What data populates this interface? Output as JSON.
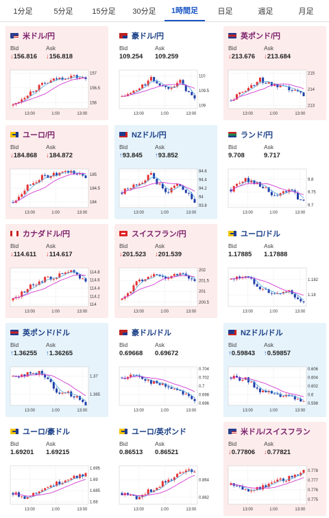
{
  "tabs": [
    {
      "label": "1分足",
      "active": false
    },
    {
      "label": "5分足",
      "active": false
    },
    {
      "label": "15分足",
      "active": false
    },
    {
      "label": "30分足",
      "active": false
    },
    {
      "label": "1時間足",
      "active": true
    },
    {
      "label": "日足",
      "active": false
    },
    {
      "label": "週足",
      "active": false
    },
    {
      "label": "月足",
      "active": false
    }
  ],
  "labels": {
    "bid": "Bid",
    "ask": "Ask"
  },
  "colors": {
    "down_bg": "#fdecec",
    "up_bg": "#e6f3fb",
    "bull": "#e53333",
    "bear": "#1f3fa8",
    "ma_short": "#4aa3df",
    "ma_long": "#d23ad2"
  },
  "cards": [
    {
      "pair": "米ドル/円",
      "flag": "us-flag-icon",
      "dir": "down",
      "bid": "156.816",
      "ask": "156.818",
      "chart_data": {
        "type": "candlestick",
        "x_ticks": [
          "13:00",
          "1:00",
          "13:00"
        ],
        "y_ticks": [
          "157",
          "156.5",
          "156"
        ],
        "ylim": [
          155.8,
          157.1
        ],
        "trend": [
          155.9,
          156.3,
          156.6,
          156.8,
          156.9,
          156.8
        ]
      }
    },
    {
      "pair": "豪ドル/円",
      "flag": "au-flag-icon",
      "dir": "flat",
      "bid": "109.254",
      "ask": "109.259",
      "chart_data": {
        "type": "candlestick",
        "x_ticks": [
          "13:00",
          "1:00",
          "13:00"
        ],
        "y_ticks": [
          "110",
          "109.5",
          "109"
        ],
        "ylim": [
          108.9,
          110.2
        ],
        "trend": [
          109.3,
          109.5,
          109.9,
          109.6,
          109.8,
          109.2
        ]
      }
    },
    {
      "pair": "英ポンド/円",
      "flag": "gb-flag-icon",
      "dir": "down",
      "bid": "213.676",
      "ask": "213.684",
      "chart_data": {
        "type": "candlestick",
        "x_ticks": [
          "13:00",
          "1:00",
          "13:00"
        ],
        "y_ticks": [
          "215",
          "214",
          "213"
        ],
        "ylim": [
          212.8,
          215.2
        ],
        "trend": [
          213.3,
          214.0,
          214.6,
          214.2,
          214.0,
          213.7
        ]
      }
    },
    {
      "pair": "ユーロ/円",
      "flag": "eu-flag-icon",
      "dir": "down",
      "bid": "184.868",
      "ask": "184.872",
      "chart_data": {
        "type": "candlestick",
        "x_ticks": [
          "13:00",
          "1:00",
          "13:00"
        ],
        "y_ticks": [
          "185",
          "184.5",
          "184"
        ],
        "ylim": [
          183.8,
          185.2
        ],
        "trend": [
          184.0,
          184.6,
          184.9,
          185.0,
          185.1,
          184.9
        ]
      }
    },
    {
      "pair": "NZドル/円",
      "flag": "nz-flag-icon",
      "dir": "up",
      "bid": "93.845",
      "ask": "93.852",
      "chart_data": {
        "type": "candlestick",
        "x_ticks": [
          "13:00",
          "1:00",
          "13:00"
        ],
        "y_ticks": [
          "94.6",
          "94.4",
          "94.2",
          "94",
          "93.8"
        ],
        "ylim": [
          93.75,
          94.65
        ],
        "trend": [
          94.1,
          94.3,
          94.5,
          94.1,
          94.3,
          93.85
        ]
      }
    },
    {
      "pair": "ランド/円",
      "flag": "za-flag-icon",
      "dir": "flat",
      "bid": "9.708",
      "ask": "9.717",
      "chart_data": {
        "type": "candlestick",
        "x_ticks": [
          "13:00",
          "1:00",
          "13:00"
        ],
        "y_ticks": [
          "9.8",
          "9.75",
          "9.7"
        ],
        "ylim": [
          9.69,
          9.84
        ],
        "trend": [
          9.76,
          9.8,
          9.78,
          9.73,
          9.76,
          9.71
        ]
      }
    },
    {
      "pair": "カナダドル/円",
      "flag": "ca-flag-icon",
      "dir": "down",
      "bid": "114.611",
      "ask": "114.617",
      "chart_data": {
        "type": "candlestick",
        "x_ticks": [
          "13:00",
          "1:00",
          "13:00"
        ],
        "y_ticks": [
          "114.8",
          "114.6",
          "114.4",
          "114.2",
          "114"
        ],
        "ylim": [
          113.95,
          114.9
        ],
        "trend": [
          114.1,
          114.4,
          114.6,
          114.7,
          114.8,
          114.6
        ]
      }
    },
    {
      "pair": "スイスフラン/円",
      "flag": "ch-flag-icon",
      "dir": "down",
      "bid": "201.523",
      "ask": "201.539",
      "chart_data": {
        "type": "candlestick",
        "x_ticks": [
          "13:00",
          "1:00",
          "13:00"
        ],
        "y_ticks": [
          "202",
          "201.5",
          "201",
          "200.5"
        ],
        "ylim": [
          200.3,
          202.1
        ],
        "trend": [
          200.6,
          201.4,
          201.8,
          201.6,
          201.9,
          201.5
        ]
      }
    },
    {
      "pair": "ユーロ/ドル",
      "flag": "eu-flag-icon",
      "dir": "flat",
      "bid": "1.17885",
      "ask": "1.17888",
      "chart_data": {
        "type": "candlestick",
        "x_ticks": [
          "13:00",
          "1:00",
          "13:00"
        ],
        "y_ticks": [
          "1.182",
          "1.18"
        ],
        "ylim": [
          1.1785,
          1.1835
        ],
        "trend": [
          1.182,
          1.1825,
          1.181,
          1.18,
          1.1805,
          1.1789
        ]
      }
    },
    {
      "pair": "英ポンド/ドル",
      "flag": "gb-flag-icon",
      "dir": "up",
      "bid": "1.36255",
      "ask": "1.36265",
      "chart_data": {
        "type": "candlestick",
        "x_ticks": [
          "13:00",
          "1:00",
          "13:00"
        ],
        "y_ticks": [
          "1.37",
          "1.365"
        ],
        "ylim": [
          1.362,
          1.3725
        ],
        "trend": [
          1.37,
          1.3705,
          1.371,
          1.366,
          1.365,
          1.3626
        ]
      }
    },
    {
      "pair": "豪ドル/ドル",
      "flag": "au-flag-icon",
      "dir": "flat",
      "bid": "0.69668",
      "ask": "0.69672",
      "chart_data": {
        "type": "candlestick",
        "x_ticks": [
          "13:00",
          "1:00",
          "13:00"
        ],
        "y_ticks": [
          "0.704",
          "0.702",
          "0.7",
          "0.698",
          "0.696"
        ],
        "ylim": [
          0.6955,
          0.7045
        ],
        "trend": [
          0.702,
          0.7025,
          0.701,
          0.7,
          0.699,
          0.6967
        ]
      }
    },
    {
      "pair": "NZドル/ドル",
      "flag": "nz-flag-icon",
      "dir": "up",
      "bid": "0.59843",
      "ask": "0.59857",
      "chart_data": {
        "type": "candlestick",
        "x_ticks": [
          "13:00",
          "1:00",
          "13:00"
        ],
        "y_ticks": [
          "0.606",
          "0.604",
          "0.602",
          "0.6",
          "0.598"
        ],
        "ylim": [
          0.5975,
          0.6065
        ],
        "trend": [
          0.604,
          0.6035,
          0.601,
          0.6,
          0.5995,
          0.5984
        ]
      }
    },
    {
      "pair": "ユーロ/豪ドル",
      "flag": "eu-flag-icon",
      "dir": "flat",
      "bid": "1.69201",
      "ask": "1.69215",
      "chart_data": {
        "type": "candlestick",
        "x_ticks": [
          "13:00",
          "1:00",
          "13:00"
        ],
        "y_ticks": [
          "1.695",
          "1.69",
          "1.685",
          "1.68"
        ],
        "ylim": [
          1.679,
          1.696
        ],
        "trend": [
          1.684,
          1.682,
          1.686,
          1.688,
          1.691,
          1.692
        ]
      }
    },
    {
      "pair": "ユーロ/英ポンド",
      "flag": "eu-flag-icon",
      "dir": "flat",
      "bid": "0.86513",
      "ask": "0.86521",
      "chart_data": {
        "type": "candlestick",
        "x_ticks": [
          "13:00",
          "1:00",
          "13:00"
        ],
        "y_ticks": [
          "0.864",
          "0.862"
        ],
        "ylim": [
          0.8612,
          0.8656
        ],
        "trend": [
          0.8625,
          0.862,
          0.8628,
          0.8638,
          0.8648,
          0.8651
        ]
      }
    },
    {
      "pair": "米ドル/スイスフラン",
      "flag": "us-flag-icon",
      "dir": "down",
      "bid": "0.77806",
      "ask": "0.77821",
      "chart_data": {
        "type": "candlestick",
        "x_ticks": [
          "13:00",
          "1:00",
          "13:00"
        ],
        "y_ticks": [
          "0.778",
          "0.777",
          "0.776",
          "0.775"
        ],
        "ylim": [
          0.7745,
          0.7785
        ],
        "trend": [
          0.7765,
          0.776,
          0.7762,
          0.7768,
          0.7772,
          0.7781
        ]
      }
    }
  ]
}
